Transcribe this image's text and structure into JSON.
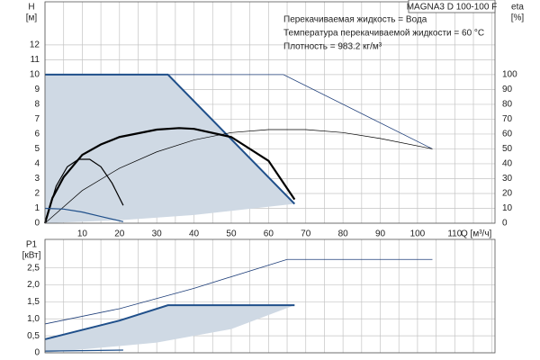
{
  "chart_data": [
    {
      "type": "line",
      "header": "MAGNA3 D 100-100 F",
      "notes": [
        "Перекачиваемая жидкость = Вода",
        "Температура перекачиваемой жидкости = 60 °C",
        "Плотность = 983.2 кг/м³"
      ],
      "ylabel": "H",
      "yunit": "[м]",
      "y2label": "eta",
      "y2unit": "[%]",
      "xlabel": "Q [м³/ч]",
      "xlim": [
        0,
        120.8
      ],
      "xticks": [
        10,
        20,
        30,
        40,
        50,
        60,
        70,
        80,
        90,
        100,
        110
      ],
      "xminor": [
        0,
        5,
        15,
        25,
        35,
        45,
        55,
        65,
        75,
        85,
        95,
        105,
        115,
        120
      ],
      "ylim": [
        0,
        14.9
      ],
      "yticks": [
        0,
        1,
        2,
        3,
        4,
        5,
        6,
        7,
        8,
        9,
        10,
        11,
        12
      ],
      "y2lim": [
        0,
        149
      ],
      "y2ticks": [
        0,
        10,
        20,
        30,
        40,
        50,
        60,
        70,
        80,
        90,
        100
      ],
      "grid": true,
      "series": [
        {
          "kind": "area",
          "color": "#cfd9e4",
          "x": [
            0,
            33,
            67,
            40,
            20,
            0
          ],
          "values": [
            10,
            10,
            1.3,
            0.55,
            0.2,
            0
          ]
        },
        {
          "color": "#1f3f7a",
          "width": 0.8,
          "x": [
            33,
            64,
            104
          ],
          "values": [
            10,
            10,
            5
          ]
        },
        {
          "color": "#1f4f8a",
          "width": 2,
          "x": [
            0,
            33,
            67
          ],
          "values": [
            10,
            10,
            1.3
          ]
        },
        {
          "color": "#000000",
          "width": 2.2,
          "x": [
            0,
            2,
            5,
            10,
            15,
            20,
            30,
            36,
            40,
            50,
            60,
            67
          ],
          "values": [
            0,
            1.7,
            3.1,
            4.6,
            5.3,
            5.8,
            6.3,
            6.4,
            6.35,
            5.8,
            4.2,
            1.6
          ]
        },
        {
          "color": "#000000",
          "width": 0.7,
          "axis": "y2",
          "x": [
            0,
            10,
            20,
            30,
            40,
            50,
            60,
            70,
            80,
            90,
            104
          ],
          "values": [
            0,
            22,
            37,
            48,
            56,
            61,
            63,
            63,
            61,
            57,
            50
          ]
        },
        {
          "color": "#000000",
          "width": 1.2,
          "x": [
            0,
            3,
            6,
            9,
            12,
            15,
            18,
            21
          ],
          "values": [
            0,
            2.5,
            3.8,
            4.3,
            4.3,
            3.8,
            2.7,
            1.2
          ]
        },
        {
          "color": "#1f4f8a",
          "width": 1.2,
          "x": [
            0,
            5,
            10,
            15,
            21
          ],
          "values": [
            1.0,
            0.95,
            0.75,
            0.45,
            0.1
          ]
        }
      ]
    },
    {
      "type": "line",
      "ylabel": "P1",
      "yunit": "[кВт]",
      "xlim": [
        0,
        120.8
      ],
      "xminor": [
        0,
        5,
        10,
        15,
        20,
        25,
        30,
        35,
        40,
        45,
        50,
        55,
        60,
        65,
        70,
        75,
        80,
        85,
        90,
        95,
        100,
        105,
        110,
        115,
        120
      ],
      "ylim": [
        0,
        3.34
      ],
      "yticks": [
        0,
        {
          "value": 0.5,
          "label": "0,5"
        },
        {
          "value": 1,
          "label": "1,0"
        },
        {
          "value": 1.5,
          "label": "1,5"
        },
        {
          "value": 2,
          "label": "2,0"
        },
        {
          "value": 2.5,
          "label": "2,5"
        }
      ],
      "grid": true,
      "series": [
        {
          "kind": "area",
          "color": "#cfd9e4",
          "x": [
            0,
            20,
            33,
            67,
            50,
            30,
            0
          ],
          "values": [
            0.4,
            0.95,
            1.4,
            1.4,
            0.7,
            0.3,
            0
          ]
        },
        {
          "color": "#1f3f7a",
          "width": 0.8,
          "x": [
            0,
            20,
            40,
            65,
            104
          ],
          "values": [
            0.85,
            1.3,
            1.9,
            2.75,
            2.75
          ]
        },
        {
          "color": "#1f4f8a",
          "width": 2,
          "x": [
            0,
            20,
            33,
            67
          ],
          "values": [
            0.4,
            0.95,
            1.4,
            1.4
          ]
        },
        {
          "color": "#1f4f8a",
          "width": 1.2,
          "x": [
            0,
            21
          ],
          "values": [
            0.05,
            0.08
          ]
        }
      ]
    }
  ]
}
